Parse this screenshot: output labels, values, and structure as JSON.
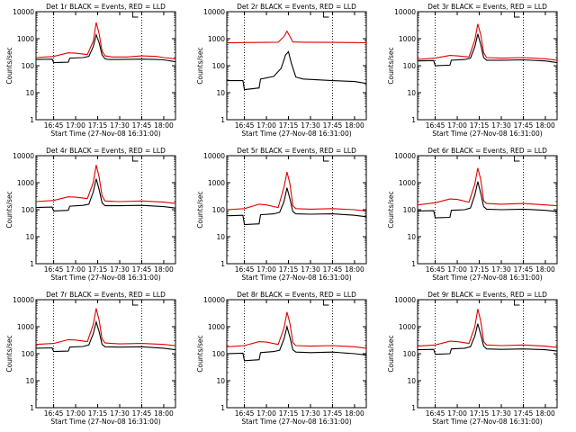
{
  "chart_data": [
    {
      "type": "line",
      "title": "Det 1r BLACK = Events, RED = LLD",
      "xlabel": "Start Time (27-Nov-08 16:31:00)",
      "ylabel": "Counts/sec",
      "yscale": "log",
      "ylim": [
        1,
        10000
      ],
      "xlim": [
        "16:33",
        "18:08"
      ],
      "x_tick_labels": [
        "16:45",
        "17:00",
        "17:15",
        "17:30",
        "17:45",
        "18:00"
      ],
      "y_tick_labels": [
        "1",
        "10",
        "100",
        "1000",
        "10000"
      ],
      "dotted_verticals": [
        "16:45",
        "17:45"
      ],
      "series": [
        {
          "name": "BLACK = Events",
          "color": "#000000",
          "x": [
            "16:33",
            "16:44",
            "16:45",
            "16:55",
            "16:56",
            "17:05",
            "17:09",
            "17:12",
            "17:14",
            "17:16",
            "17:18",
            "17:20",
            "17:22",
            "17:30",
            "17:45",
            "17:55",
            "18:00",
            "18:08"
          ],
          "y": [
            170,
            175,
            130,
            135,
            190,
            200,
            220,
            500,
            1400,
            700,
            250,
            180,
            170,
            170,
            175,
            170,
            165,
            140
          ]
        },
        {
          "name": "RED = LLD",
          "color": "#e00000",
          "x": [
            "16:33",
            "16:45",
            "16:55",
            "17:00",
            "17:08",
            "17:12",
            "17:14",
            "17:16",
            "17:18",
            "17:20",
            "17:25",
            "17:35",
            "17:45",
            "17:55",
            "18:00",
            "18:08"
          ],
          "y": [
            200,
            220,
            300,
            290,
            260,
            800,
            4000,
            1500,
            350,
            230,
            210,
            210,
            230,
            220,
            200,
            180
          ]
        }
      ]
    },
    {
      "type": "line",
      "title": "Det 2r BLACK = Events, RED = LLD",
      "xlabel": "Start Time (27-Nov-08 16:31:00)",
      "ylabel": "Counts/sec",
      "yscale": "log",
      "ylim": [
        1,
        10000
      ],
      "xlim": [
        "16:33",
        "18:08"
      ],
      "x_tick_labels": [
        "16:45",
        "17:00",
        "17:15",
        "17:30",
        "17:45",
        "18:00"
      ],
      "y_tick_labels": [
        "1",
        "10",
        "100",
        "1000",
        "10000"
      ],
      "dotted_verticals": [
        "16:45",
        "17:45"
      ],
      "series": [
        {
          "name": "BLACK = Events",
          "color": "#000000",
          "x": [
            "16:33",
            "16:44",
            "16:45",
            "16:55",
            "16:56",
            "17:05",
            "17:10",
            "17:13",
            "17:15",
            "17:17",
            "17:20",
            "17:25",
            "17:35",
            "17:45",
            "18:00",
            "18:08"
          ],
          "y": [
            28,
            28,
            13,
            15,
            32,
            40,
            80,
            250,
            330,
            120,
            38,
            32,
            30,
            28,
            26,
            22
          ]
        },
        {
          "name": "RED = LLD",
          "color": "#e00000",
          "x": [
            "16:33",
            "16:45",
            "17:00",
            "17:08",
            "17:12",
            "17:14",
            "17:16",
            "17:18",
            "17:25",
            "17:45",
            "18:00",
            "18:08"
          ],
          "y": [
            700,
            720,
            730,
            740,
            1200,
            1900,
            1200,
            760,
            740,
            730,
            720,
            710
          ]
        }
      ]
    },
    {
      "type": "line",
      "title": "Det 3r BLACK = Events, RED = LLD",
      "xlabel": "Start Time (27-Nov-08 16:31:00)",
      "ylabel": "Counts/sec",
      "yscale": "log",
      "ylim": [
        1,
        10000
      ],
      "xlim": [
        "16:33",
        "18:08"
      ],
      "x_tick_labels": [
        "16:45",
        "17:00",
        "17:15",
        "17:30",
        "17:45",
        "18:00"
      ],
      "y_tick_labels": [
        "1",
        "10",
        "100",
        "1000",
        "10000"
      ],
      "dotted_verticals": [
        "16:45",
        "17:45"
      ],
      "series": [
        {
          "name": "BLACK = Events",
          "color": "#000000",
          "x": [
            "16:33",
            "16:44",
            "16:45",
            "16:55",
            "16:56",
            "17:05",
            "17:09",
            "17:12",
            "17:14",
            "17:16",
            "17:18",
            "17:20",
            "17:30",
            "17:45",
            "18:00",
            "18:08"
          ],
          "y": [
            150,
            155,
            100,
            105,
            160,
            170,
            190,
            500,
            1500,
            600,
            200,
            160,
            160,
            165,
            150,
            130
          ]
        },
        {
          "name": "RED = LLD",
          "color": "#e00000",
          "x": [
            "16:33",
            "16:45",
            "16:55",
            "17:00",
            "17:08",
            "17:12",
            "17:14",
            "17:16",
            "17:18",
            "17:20",
            "17:30",
            "17:45",
            "18:00",
            "18:08"
          ],
          "y": [
            170,
            190,
            240,
            230,
            210,
            900,
            3500,
            1400,
            300,
            200,
            190,
            200,
            180,
            160
          ]
        }
      ]
    },
    {
      "type": "line",
      "title": "Det 4r BLACK = Events, RED = LLD",
      "xlabel": "Start Time (27-Nov-08 16:31:00)",
      "ylabel": "Counts/sec",
      "yscale": "log",
      "ylim": [
        1,
        10000
      ],
      "xlim": [
        "16:33",
        "18:08"
      ],
      "x_tick_labels": [
        "16:45",
        "17:00",
        "17:15",
        "17:30",
        "17:45",
        "18:00"
      ],
      "y_tick_labels": [
        "1",
        "10",
        "100",
        "1000",
        "10000"
      ],
      "dotted_verticals": [
        "16:45",
        "17:45"
      ],
      "series": [
        {
          "name": "BLACK = Events",
          "color": "#000000",
          "x": [
            "16:33",
            "16:44",
            "16:45",
            "16:55",
            "16:56",
            "17:05",
            "17:09",
            "17:12",
            "17:14",
            "17:16",
            "17:18",
            "17:20",
            "17:30",
            "17:45",
            "18:00",
            "18:08"
          ],
          "y": [
            120,
            125,
            90,
            95,
            135,
            145,
            160,
            450,
            1400,
            550,
            180,
            140,
            140,
            145,
            130,
            115
          ]
        },
        {
          "name": "RED = LLD",
          "color": "#e00000",
          "x": [
            "16:33",
            "16:45",
            "16:55",
            "17:00",
            "17:08",
            "17:12",
            "17:14",
            "17:16",
            "17:18",
            "17:20",
            "17:30",
            "17:45",
            "18:00",
            "18:08"
          ],
          "y": [
            200,
            220,
            300,
            290,
            260,
            1000,
            4500,
            1600,
            320,
            210,
            200,
            210,
            190,
            170
          ]
        }
      ]
    },
    {
      "type": "line",
      "title": "Det 5r BLACK = Events, RED = LLD",
      "xlabel": "Start Time (27-Nov-08 16:31:00)",
      "ylabel": "Counts/sec",
      "yscale": "log",
      "ylim": [
        1,
        10000
      ],
      "xlim": [
        "16:33",
        "18:08"
      ],
      "x_tick_labels": [
        "16:45",
        "17:00",
        "17:15",
        "17:30",
        "17:45",
        "18:00"
      ],
      "y_tick_labels": [
        "1",
        "10",
        "100",
        "1000",
        "10000"
      ],
      "dotted_verticals": [
        "16:45",
        "17:45"
      ],
      "series": [
        {
          "name": "BLACK = Events",
          "color": "#000000",
          "x": [
            "16:33",
            "16:44",
            "16:45",
            "16:55",
            "16:56",
            "17:05",
            "17:09",
            "17:12",
            "17:14",
            "17:16",
            "17:18",
            "17:20",
            "17:30",
            "17:45",
            "18:00",
            "18:08"
          ],
          "y": [
            60,
            62,
            28,
            30,
            65,
            70,
            80,
            200,
            650,
            250,
            85,
            70,
            68,
            70,
            62,
            55
          ]
        },
        {
          "name": "RED = LLD",
          "color": "#e00000",
          "x": [
            "16:33",
            "16:45",
            "16:55",
            "17:00",
            "17:08",
            "17:12",
            "17:14",
            "17:16",
            "17:18",
            "17:20",
            "17:30",
            "17:45",
            "18:00",
            "18:08"
          ],
          "y": [
            100,
            110,
            160,
            150,
            120,
            700,
            2500,
            900,
            140,
            110,
            105,
            110,
            100,
            90
          ]
        }
      ]
    },
    {
      "type": "line",
      "title": "Det 6r BLACK = Events, RED = LLD",
      "xlabel": "Start Time (27-Nov-08 16:31:00)",
      "ylabel": "Counts/sec",
      "yscale": "log",
      "ylim": [
        1,
        10000
      ],
      "xlim": [
        "16:33",
        "18:08"
      ],
      "x_tick_labels": [
        "16:45",
        "17:00",
        "17:15",
        "17:30",
        "17:45",
        "18:00"
      ],
      "y_tick_labels": [
        "1",
        "10",
        "100",
        "1000",
        "10000"
      ],
      "dotted_verticals": [
        "16:45",
        "17:45"
      ],
      "series": [
        {
          "name": "BLACK = Events",
          "color": "#000000",
          "x": [
            "16:33",
            "16:44",
            "16:45",
            "16:55",
            "16:56",
            "17:05",
            "17:09",
            "17:12",
            "17:14",
            "17:16",
            "17:18",
            "17:20",
            "17:30",
            "17:45",
            "18:00",
            "18:08"
          ],
          "y": [
            90,
            92,
            50,
            52,
            95,
            100,
            115,
            350,
            1100,
            400,
            130,
            105,
            100,
            105,
            95,
            85
          ]
        },
        {
          "name": "RED = LLD",
          "color": "#e00000",
          "x": [
            "16:33",
            "16:45",
            "16:55",
            "17:00",
            "17:08",
            "17:12",
            "17:14",
            "17:16",
            "17:18",
            "17:20",
            "17:30",
            "17:45",
            "18:00",
            "18:08"
          ],
          "y": [
            150,
            180,
            250,
            240,
            190,
            900,
            3500,
            1300,
            210,
            170,
            160,
            170,
            150,
            140
          ]
        }
      ]
    },
    {
      "type": "line",
      "title": "Det 7r BLACK = Events, RED = LLD",
      "xlabel": "Start Time (27-Nov-08 16:31:00)",
      "ylabel": "Counts/sec",
      "yscale": "log",
      "ylim": [
        1,
        10000
      ],
      "xlim": [
        "16:33",
        "18:08"
      ],
      "x_tick_labels": [
        "16:45",
        "17:00",
        "17:15",
        "17:30",
        "17:45",
        "18:00"
      ],
      "y_tick_labels": [
        "1",
        "10",
        "100",
        "1000",
        "10000"
      ],
      "dotted_verticals": [
        "16:45",
        "17:45"
      ],
      "series": [
        {
          "name": "BLACK = Events",
          "color": "#000000",
          "x": [
            "16:33",
            "16:44",
            "16:45",
            "16:55",
            "16:56",
            "17:05",
            "17:09",
            "17:12",
            "17:14",
            "17:16",
            "17:18",
            "17:20",
            "17:30",
            "17:45",
            "18:00",
            "18:08"
          ],
          "y": [
            160,
            165,
            120,
            125,
            175,
            185,
            210,
            550,
            1500,
            650,
            220,
            180,
            175,
            180,
            160,
            140
          ]
        },
        {
          "name": "RED = LLD",
          "color": "#e00000",
          "x": [
            "16:33",
            "16:45",
            "16:55",
            "17:00",
            "17:08",
            "17:12",
            "17:14",
            "17:16",
            "17:18",
            "17:20",
            "17:30",
            "17:45",
            "18:00",
            "18:08"
          ],
          "y": [
            220,
            240,
            330,
            320,
            280,
            1200,
            4800,
            1700,
            350,
            250,
            230,
            240,
            220,
            200
          ]
        }
      ]
    },
    {
      "type": "line",
      "title": "Det 8r BLACK = Events, RED = LLD",
      "xlabel": "Start Time (27-Nov-08 16:31:00)",
      "ylabel": "Counts/sec",
      "yscale": "log",
      "ylim": [
        1,
        10000
      ],
      "xlim": [
        "16:33",
        "18:08"
      ],
      "x_tick_labels": [
        "16:45",
        "17:00",
        "17:15",
        "17:30",
        "17:45",
        "18:00"
      ],
      "y_tick_labels": [
        "1",
        "10",
        "100",
        "1000",
        "10000"
      ],
      "dotted_verticals": [
        "16:45",
        "17:45"
      ],
      "series": [
        {
          "name": "BLACK = Events",
          "color": "#000000",
          "x": [
            "16:33",
            "16:44",
            "16:45",
            "16:55",
            "16:56",
            "17:05",
            "17:09",
            "17:12",
            "17:14",
            "17:16",
            "17:18",
            "17:20",
            "17:30",
            "17:45",
            "18:00",
            "18:08"
          ],
          "y": [
            100,
            105,
            55,
            60,
            110,
            120,
            135,
            350,
            1000,
            400,
            140,
            115,
            110,
            115,
            100,
            90
          ]
        },
        {
          "name": "RED = LLD",
          "color": "#e00000",
          "x": [
            "16:33",
            "16:45",
            "16:55",
            "17:00",
            "17:08",
            "17:12",
            "17:14",
            "17:16",
            "17:18",
            "17:20",
            "17:30",
            "17:45",
            "18:00",
            "18:08"
          ],
          "y": [
            180,
            200,
            280,
            270,
            220,
            900,
            3500,
            1300,
            260,
            200,
            190,
            200,
            180,
            160
          ]
        }
      ]
    },
    {
      "type": "line",
      "title": "Det 9r BLACK = Events, RED = LLD",
      "xlabel": "Start Time (27-Nov-08 16:31:00)",
      "ylabel": "Counts/sec",
      "yscale": "log",
      "ylim": [
        1,
        10000
      ],
      "xlim": [
        "16:33",
        "18:08"
      ],
      "x_tick_labels": [
        "16:45",
        "17:00",
        "17:15",
        "17:30",
        "17:45",
        "18:00"
      ],
      "y_tick_labels": [
        "1",
        "10",
        "100",
        "1000",
        "10000"
      ],
      "dotted_verticals": [
        "16:45",
        "17:45"
      ],
      "series": [
        {
          "name": "BLACK = Events",
          "color": "#000000",
          "x": [
            "16:33",
            "16:44",
            "16:45",
            "16:55",
            "16:56",
            "17:05",
            "17:09",
            "17:12",
            "17:14",
            "17:16",
            "17:18",
            "17:20",
            "17:30",
            "17:45",
            "18:00",
            "18:08"
          ],
          "y": [
            140,
            145,
            95,
            100,
            150,
            160,
            180,
            450,
            1300,
            500,
            190,
            150,
            145,
            150,
            140,
            125
          ]
        },
        {
          "name": "RED = LLD",
          "color": "#e00000",
          "x": [
            "16:33",
            "16:45",
            "16:55",
            "17:00",
            "17:08",
            "17:12",
            "17:14",
            "17:16",
            "17:18",
            "17:20",
            "17:30",
            "17:45",
            "18:00",
            "18:08"
          ],
          "y": [
            190,
            210,
            290,
            280,
            240,
            1000,
            4500,
            1600,
            280,
            210,
            200,
            210,
            190,
            170
          ]
        }
      ]
    }
  ]
}
